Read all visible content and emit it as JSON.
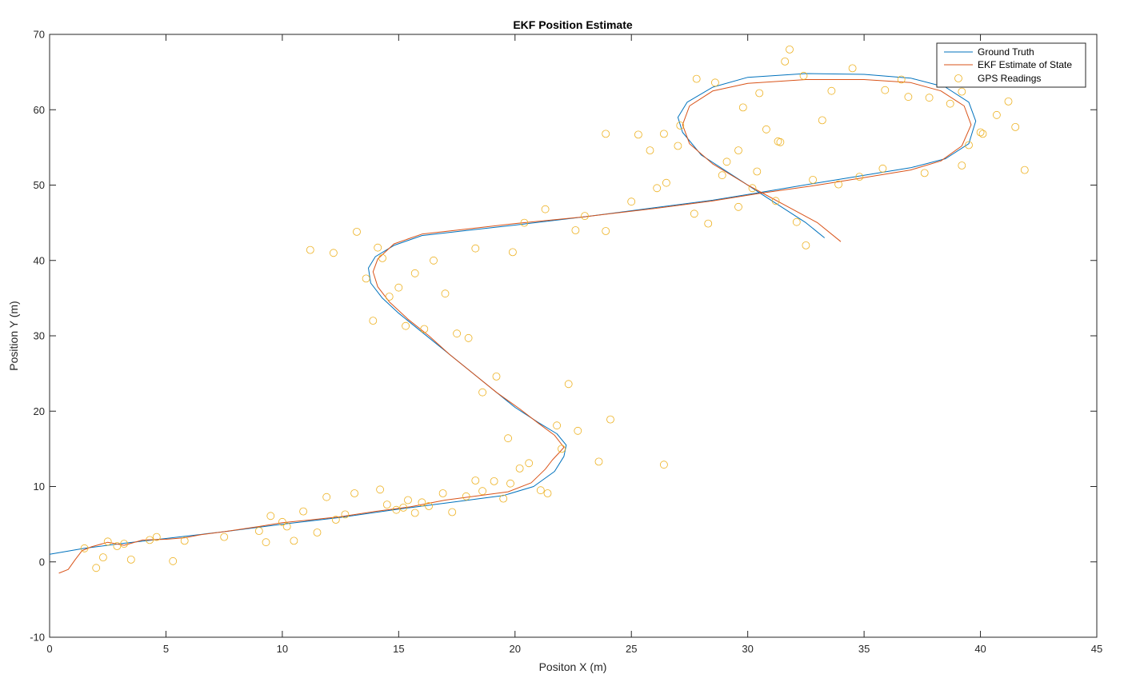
{
  "chart_data": {
    "type": "line",
    "title": "EKF Position Estimate",
    "xlabel": "Positon X (m)",
    "ylabel": "Position Y (m)",
    "xlim": [
      0,
      45
    ],
    "ylim": [
      -10,
      70
    ],
    "xticks": [
      0,
      5,
      10,
      15,
      20,
      25,
      30,
      35,
      40,
      45
    ],
    "yticks": [
      -10,
      0,
      10,
      20,
      30,
      40,
      50,
      60,
      70
    ],
    "xtick_labels": [
      "0",
      "5",
      "10",
      "15",
      "20",
      "25",
      "30",
      "35",
      "40",
      "45"
    ],
    "ytick_labels": [
      "-10",
      "0",
      "10",
      "20",
      "30",
      "40",
      "50",
      "60",
      "70"
    ],
    "grid": false,
    "legend_position": "top-right",
    "colors": {
      "ground_truth": "#0072BD",
      "ekf": "#D95319",
      "gps": "#EDB120"
    },
    "series": [
      {
        "name": "Ground Truth",
        "kind": "line",
        "x": [
          0,
          1.5,
          3,
          5,
          7.5,
          10,
          12.5,
          15,
          17.5,
          19.5,
          20.8,
          21.7,
          22.1,
          22.2,
          21.8,
          21,
          20,
          19,
          18,
          17,
          16,
          15,
          14.3,
          13.8,
          13.7,
          14,
          14.8,
          16,
          18,
          20,
          23,
          26,
          28.5,
          30.5,
          33,
          35,
          37,
          38.5,
          39.5,
          39.8,
          39.5,
          38.5,
          37,
          35,
          32.5,
          30,
          28.5,
          27.4,
          27,
          27.2,
          28,
          29.5,
          31,
          32.5,
          33.3
        ],
        "y": [
          1,
          1.8,
          2.4,
          3.1,
          4,
          5,
          5.9,
          7,
          8,
          8.8,
          10,
          12,
          14,
          15.5,
          17,
          18.5,
          20.5,
          23,
          25.5,
          28,
          30.5,
          33,
          35,
          37,
          39,
          40.5,
          42,
          43.3,
          44,
          44.7,
          45.8,
          47,
          48,
          49,
          50.3,
          51.3,
          52.3,
          53.5,
          55.5,
          58.5,
          61,
          63,
          64.2,
          64.7,
          64.8,
          64.3,
          63,
          61,
          59,
          57,
          54,
          51,
          48,
          45,
          43
        ]
      },
      {
        "name": "EKF Estimate of State",
        "kind": "line",
        "x": [
          0.4,
          0.8,
          1.1,
          1.4,
          1.8,
          2.5,
          3.2,
          4,
          5,
          5.8,
          6.5,
          7.5,
          9,
          10,
          11,
          12.5,
          14,
          15.5,
          17,
          18.5,
          19.7,
          20.7,
          21.3,
          21.6,
          21.9,
          22.1,
          21.7,
          21,
          20.2,
          19.2,
          18.2,
          17.2,
          16.3,
          15.4,
          14.6,
          14.1,
          13.9,
          14.1,
          14.8,
          16,
          18,
          20,
          23,
          26,
          28.5,
          30.5,
          33,
          35,
          37,
          38.3,
          39.2,
          39.6,
          39.3,
          38.3,
          37,
          35,
          32.5,
          30,
          28.5,
          27.5,
          27.2,
          27.5,
          28.5,
          30,
          31.5,
          33,
          34
        ],
        "y": [
          -1.5,
          -1,
          0.3,
          1.5,
          2,
          2.6,
          2.2,
          2.9,
          3,
          3.2,
          3.6,
          4,
          4.7,
          5.2,
          5.5,
          6,
          6.7,
          7.3,
          8.2,
          8.8,
          9.3,
          10.5,
          12.3,
          13.5,
          14.5,
          15.2,
          16.8,
          18.4,
          20.3,
          22.5,
          25,
          27.5,
          30,
          32.2,
          34.5,
          36.5,
          38.5,
          40.2,
          42.2,
          43.5,
          44.2,
          44.9,
          45.8,
          46.9,
          47.9,
          48.9,
          50,
          51,
          52,
          53.2,
          55.2,
          58,
          60.5,
          62.5,
          63.6,
          64,
          64,
          63.5,
          62.5,
          60.5,
          58,
          55.5,
          52.8,
          50,
          47.5,
          45,
          42.5
        ]
      },
      {
        "name": "GPS Readings",
        "kind": "scatter",
        "x": [
          1.5,
          2,
          2.3,
          2.5,
          2.9,
          3.2,
          3.5,
          4.3,
          4.6,
          5.3,
          5.8,
          7.5,
          9,
          9.3,
          9.5,
          10,
          10.2,
          10.5,
          10.9,
          11.5,
          11.9,
          12.3,
          12.7,
          13.1,
          14.2,
          14.5,
          14.9,
          15.2,
          15.4,
          15.7,
          16,
          16.3,
          16.9,
          17.3,
          17.9,
          18.3,
          18.6,
          19.1,
          19.5,
          19.8,
          20.2,
          20.6,
          21.1,
          21.4,
          21.8,
          22.3,
          22.7,
          23.6,
          24.1,
          26.4,
          11.2,
          12.2,
          13.2,
          13.6,
          13.9,
          14.1,
          14.3,
          14.6,
          15,
          15.3,
          15.7,
          16.1,
          16.5,
          17,
          17.5,
          18,
          18.3,
          18.6,
          19.2,
          19.7,
          19.9,
          20.4,
          21.3,
          22,
          22.6,
          23,
          23.9,
          25.3,
          25.8,
          26.4,
          27.1,
          27.7,
          28.3,
          29.1,
          29.6,
          30.4,
          30.8,
          31.4,
          31.6,
          32.1,
          32.5,
          33.2,
          33.9,
          34.5,
          35.8,
          36.6,
          37.6,
          38.3,
          39.2,
          39.5,
          40.1,
          40.7,
          41.2,
          41.9,
          23.9,
          25,
          26.1,
          26.5,
          27,
          27.8,
          28.9,
          29.8,
          30.5,
          31.2,
          31.8,
          32.4,
          33.6,
          34.8,
          35.9,
          36.9,
          37.8,
          38.7,
          39.2,
          40,
          41.5,
          31.3,
          32.8,
          30.2,
          29.6,
          28.6
        ],
        "y": [
          1.8,
          -0.8,
          0.6,
          2.7,
          2.1,
          2.4,
          0.3,
          2.9,
          3.3,
          0.1,
          2.8,
          3.3,
          4.1,
          2.6,
          6.1,
          5.3,
          4.7,
          2.8,
          6.7,
          3.9,
          8.6,
          5.6,
          6.3,
          9.1,
          9.6,
          7.6,
          6.9,
          7.2,
          8.2,
          6.5,
          7.9,
          7.4,
          9.1,
          6.6,
          8.7,
          10.8,
          9.4,
          10.7,
          8.4,
          10.4,
          12.4,
          13.1,
          9.5,
          9.1,
          18.1,
          23.6,
          17.4,
          13.3,
          18.9,
          12.9,
          41.4,
          41,
          43.8,
          37.6,
          32,
          41.7,
          40.3,
          35.2,
          36.4,
          31.3,
          38.3,
          30.9,
          40,
          35.6,
          30.3,
          29.7,
          41.6,
          22.5,
          24.6,
          16.4,
          41.1,
          45,
          46.8,
          15,
          44,
          45.9,
          56.8,
          56.7,
          54.6,
          56.8,
          57.9,
          46.2,
          44.9,
          53.1,
          47.1,
          51.8,
          57.4,
          55.7,
          66.4,
          45.1,
          42,
          58.6,
          50.1,
          65.5,
          52.2,
          64,
          51.6,
          64.8,
          52.6,
          55.3,
          56.8,
          59.3,
          61.1,
          52,
          43.9,
          47.8,
          49.6,
          50.3,
          55.2,
          64.1,
          51.3,
          60.3,
          62.2,
          47.9,
          68,
          64.5,
          62.5,
          51.1,
          62.6,
          61.7,
          61.6,
          60.8,
          62.4,
          57,
          57.7,
          55.8,
          50.7,
          49.6,
          54.6,
          63.6
        ]
      }
    ]
  }
}
